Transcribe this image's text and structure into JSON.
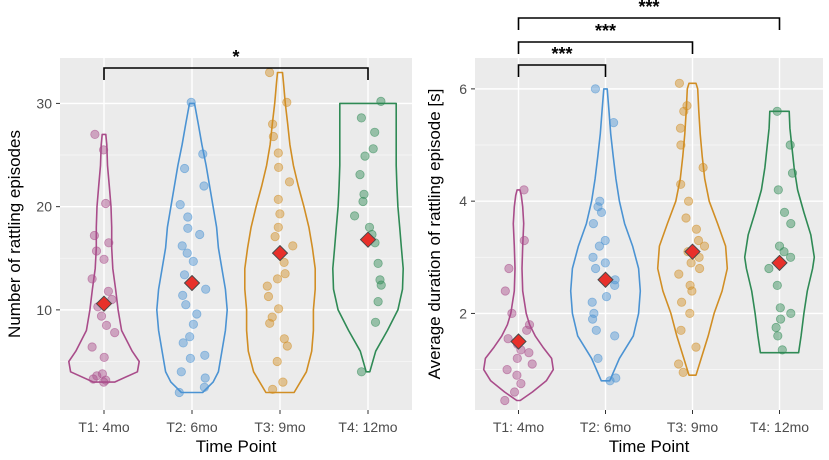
{
  "chart_data": [
    {
      "type": "violin",
      "xlabel": "Time Point",
      "ylabel": "Number of rattling episodes",
      "ylim": [
        0.3,
        34.4
      ],
      "yticks": [
        10,
        20,
        30
      ],
      "categories": [
        "T1: 4mo",
        "T2: 6mo",
        "T3: 9mo",
        "T4: 12mo"
      ],
      "colors": [
        "#a94c8a",
        "#4b93d3",
        "#d18e24",
        "#2f8a55"
      ],
      "mean_color": "#e8302a",
      "series": [
        {
          "name": "T1: 4mo",
          "mean": 10.6,
          "density": [
            [
              3.0,
              0.3
            ],
            [
              4.0,
              0.95
            ],
            [
              5.0,
              1.0
            ],
            [
              6.0,
              0.8
            ],
            [
              8.0,
              0.5
            ],
            [
              10.0,
              0.4
            ],
            [
              12.0,
              0.33
            ],
            [
              14.0,
              0.25
            ],
            [
              16.0,
              0.22
            ],
            [
              18.0,
              0.22
            ],
            [
              20.0,
              0.2
            ],
            [
              22.0,
              0.15
            ],
            [
              24.0,
              0.1
            ],
            [
              26.0,
              0.08
            ],
            [
              27.0,
              0.05
            ]
          ],
          "points": [
            3.0,
            3.2,
            3.3,
            3.6,
            3.8,
            5.4,
            6.4,
            7.8,
            8.5,
            9.4,
            10.3,
            11.0,
            11.8,
            13.0,
            14.9,
            15.7,
            16.5,
            17.2,
            20.3,
            25.5,
            27.0
          ]
        },
        {
          "name": "T2: 6mo",
          "mean": 12.6,
          "density": [
            [
              2.0,
              0.3
            ],
            [
              3.0,
              0.6
            ],
            [
              4.0,
              0.75
            ],
            [
              6.0,
              0.85
            ],
            [
              8.0,
              0.95
            ],
            [
              10.0,
              1.0
            ],
            [
              12.0,
              0.95
            ],
            [
              14.0,
              0.85
            ],
            [
              16.0,
              0.75
            ],
            [
              18.0,
              0.7
            ],
            [
              20.0,
              0.6
            ],
            [
              22.0,
              0.5
            ],
            [
              24.0,
              0.4
            ],
            [
              26.0,
              0.28
            ],
            [
              28.0,
              0.18
            ],
            [
              30.0,
              0.07
            ]
          ],
          "points": [
            2.0,
            2.5,
            3.4,
            4.0,
            5.3,
            5.6,
            6.8,
            7.4,
            8.6,
            9.6,
            10.5,
            11.4,
            12.0,
            12.6,
            13.4,
            14.7,
            15.5,
            16.2,
            17.3,
            17.9,
            19.0,
            20.2,
            22.0,
            23.7,
            25.1,
            30.1
          ]
        },
        {
          "name": "T3: 9mo",
          "mean": 15.5,
          "density": [
            [
              2.0,
              0.4
            ],
            [
              4.0,
              0.75
            ],
            [
              6.0,
              0.9
            ],
            [
              8.0,
              0.95
            ],
            [
              10.0,
              0.95
            ],
            [
              12.0,
              1.0
            ],
            [
              14.0,
              1.0
            ],
            [
              16.0,
              0.92
            ],
            [
              18.0,
              0.82
            ],
            [
              20.0,
              0.68
            ],
            [
              22.0,
              0.52
            ],
            [
              24.0,
              0.38
            ],
            [
              26.0,
              0.28
            ],
            [
              28.0,
              0.22
            ],
            [
              30.0,
              0.15
            ],
            [
              32.0,
              0.1
            ],
            [
              33.0,
              0.07
            ]
          ],
          "points": [
            2.3,
            3.0,
            5.0,
            6.5,
            7.2,
            8.7,
            9.3,
            10.1,
            11.3,
            12.3,
            13.0,
            13.5,
            14.6,
            16.2,
            17.1,
            18.0,
            19.3,
            20.7,
            22.4,
            23.8,
            25.2,
            26.8,
            28.0,
            30.1,
            33.0
          ]
        },
        {
          "name": "T4: 12mo",
          "mean": 16.8,
          "density": [
            [
              4.0,
              0.05
            ],
            [
              6.0,
              0.22
            ],
            [
              8.0,
              0.55
            ],
            [
              10.0,
              0.85
            ],
            [
              12.0,
              0.98
            ],
            [
              14.0,
              1.0
            ],
            [
              16.0,
              0.95
            ],
            [
              18.0,
              0.9
            ],
            [
              20.0,
              0.85
            ],
            [
              22.0,
              0.82
            ],
            [
              24.0,
              0.8
            ],
            [
              26.0,
              0.8
            ],
            [
              28.0,
              0.8
            ],
            [
              30.0,
              0.8
            ]
          ],
          "points": [
            4.0,
            8.8,
            10.8,
            12.4,
            12.9,
            14.5,
            16.5,
            17.3,
            18.0,
            19.1,
            20.5,
            21.2,
            23.1,
            24.9,
            25.6,
            27.2,
            28.6,
            30.2
          ]
        }
      ],
      "comparisons": [
        {
          "from": 0,
          "to": 3,
          "label": "*"
        }
      ]
    },
    {
      "type": "violin",
      "xlabel": "Time Point",
      "ylabel": "Average duration of rattling episode [s]",
      "ylim": [
        0.28,
        6.55
      ],
      "yticks": [
        2,
        4,
        6
      ],
      "categories": [
        "T1: 4mo",
        "T2: 6mo",
        "T3: 9mo",
        "T4: 12mo"
      ],
      "colors": [
        "#a94c8a",
        "#4b93d3",
        "#d18e24",
        "#2f8a55"
      ],
      "mean_color": "#e8302a",
      "series": [
        {
          "name": "T1: 4mo",
          "mean": 1.5,
          "density": [
            [
              0.45,
              0.05
            ],
            [
              0.6,
              0.4
            ],
            [
              0.8,
              0.8
            ],
            [
              1.0,
              1.0
            ],
            [
              1.2,
              0.95
            ],
            [
              1.4,
              0.7
            ],
            [
              1.6,
              0.48
            ],
            [
              1.8,
              0.32
            ],
            [
              2.0,
              0.22
            ],
            [
              2.4,
              0.12
            ],
            [
              2.8,
              0.1
            ],
            [
              3.2,
              0.12
            ],
            [
              3.6,
              0.15
            ],
            [
              3.9,
              0.12
            ],
            [
              4.1,
              0.08
            ],
            [
              4.2,
              0.04
            ]
          ],
          "points": [
            0.45,
            0.6,
            0.75,
            0.9,
            1.0,
            1.1,
            1.2,
            1.3,
            1.35,
            1.45,
            1.55,
            1.7,
            1.8,
            2.0,
            2.4,
            2.8,
            3.3,
            4.2
          ]
        },
        {
          "name": "T2: 6mo",
          "mean": 2.6,
          "density": [
            [
              0.8,
              0.12
            ],
            [
              1.2,
              0.4
            ],
            [
              1.6,
              0.8
            ],
            [
              2.0,
              0.95
            ],
            [
              2.4,
              1.0
            ],
            [
              2.8,
              0.95
            ],
            [
              3.2,
              0.78
            ],
            [
              3.6,
              0.55
            ],
            [
              4.0,
              0.4
            ],
            [
              4.4,
              0.3
            ],
            [
              4.8,
              0.22
            ],
            [
              5.2,
              0.15
            ],
            [
              5.6,
              0.1
            ],
            [
              6.0,
              0.05
            ]
          ],
          "points": [
            0.8,
            0.85,
            1.2,
            1.6,
            1.7,
            1.9,
            2.0,
            2.2,
            2.3,
            2.5,
            2.6,
            2.8,
            2.9,
            3.0,
            3.2,
            3.3,
            3.6,
            3.8,
            3.9,
            4.0,
            5.4,
            6.0
          ]
        },
        {
          "name": "T3: 9mo",
          "mean": 3.1,
          "density": [
            [
              0.9,
              0.1
            ],
            [
              1.2,
              0.25
            ],
            [
              1.6,
              0.45
            ],
            [
              2.0,
              0.62
            ],
            [
              2.4,
              0.85
            ],
            [
              2.8,
              1.0
            ],
            [
              3.2,
              0.95
            ],
            [
              3.6,
              0.72
            ],
            [
              4.0,
              0.48
            ],
            [
              4.4,
              0.35
            ],
            [
              4.8,
              0.28
            ],
            [
              5.2,
              0.22
            ],
            [
              5.6,
              0.18
            ],
            [
              6.0,
              0.15
            ],
            [
              6.1,
              0.1
            ]
          ],
          "points": [
            0.95,
            1.1,
            1.4,
            1.7,
            2.0,
            2.2,
            2.4,
            2.5,
            2.7,
            2.8,
            2.9,
            3.0,
            3.1,
            3.2,
            3.3,
            3.5,
            3.7,
            4.0,
            4.3,
            4.6,
            5.0,
            5.3,
            5.6,
            5.7,
            6.1
          ]
        },
        {
          "name": "T4: 12mo",
          "mean": 2.9,
          "density": [
            [
              1.3,
              0.55
            ],
            [
              1.6,
              0.62
            ],
            [
              2.0,
              0.7
            ],
            [
              2.4,
              0.8
            ],
            [
              2.8,
              0.95
            ],
            [
              3.0,
              1.0
            ],
            [
              3.4,
              0.9
            ],
            [
              3.8,
              0.7
            ],
            [
              4.2,
              0.52
            ],
            [
              4.6,
              0.42
            ],
            [
              5.0,
              0.35
            ],
            [
              5.3,
              0.3
            ],
            [
              5.6,
              0.28
            ]
          ],
          "points": [
            1.35,
            1.6,
            1.75,
            1.9,
            2.0,
            2.1,
            2.5,
            2.8,
            3.0,
            3.1,
            3.2,
            3.6,
            3.8,
            4.2,
            4.5,
            5.0,
            5.6
          ]
        }
      ],
      "comparisons": [
        {
          "from": 0,
          "to": 1,
          "label": "***"
        },
        {
          "from": 0,
          "to": 2,
          "label": "***"
        },
        {
          "from": 0,
          "to": 3,
          "label": "***"
        }
      ]
    }
  ]
}
